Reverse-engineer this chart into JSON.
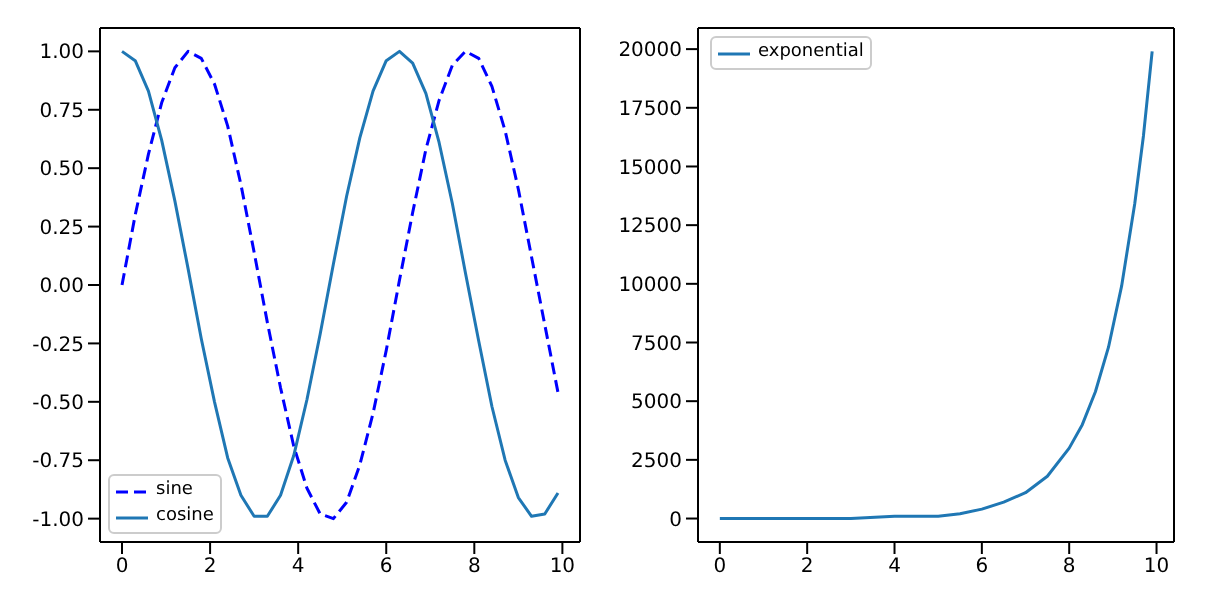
{
  "chart_data": [
    {
      "type": "line",
      "x": [
        0,
        0.3,
        0.6,
        0.9,
        1.2,
        1.5,
        1.8,
        2.1,
        2.4,
        2.7,
        3.0,
        3.3,
        3.6,
        3.9,
        4.2,
        4.5,
        4.8,
        5.1,
        5.4,
        5.7,
        6.0,
        6.3,
        6.6,
        6.9,
        7.2,
        7.5,
        7.8,
        8.1,
        8.4,
        8.7,
        9.0,
        9.3,
        9.6,
        9.9
      ],
      "series": [
        {
          "name": "sine",
          "color": "#0000ff",
          "line_style": "dashed",
          "values": [
            0,
            0.3,
            0.56,
            0.78,
            0.93,
            1.0,
            0.97,
            0.86,
            0.68,
            0.43,
            0.14,
            -0.16,
            -0.44,
            -0.69,
            -0.87,
            -0.98,
            -1.0,
            -0.93,
            -0.77,
            -0.55,
            -0.28,
            0.02,
            0.31,
            0.58,
            0.79,
            0.94,
            1.0,
            0.97,
            0.85,
            0.66,
            0.41,
            0.12,
            -0.17,
            -0.46
          ]
        },
        {
          "name": "cosine",
          "color": "#1f77b4",
          "line_style": "solid",
          "values": [
            1,
            0.96,
            0.83,
            0.62,
            0.36,
            0.07,
            -0.23,
            -0.5,
            -0.74,
            -0.9,
            -0.99,
            -0.99,
            -0.9,
            -0.73,
            -0.49,
            -0.21,
            0.09,
            0.38,
            0.63,
            0.83,
            0.96,
            1.0,
            0.95,
            0.82,
            0.61,
            0.35,
            0.05,
            -0.24,
            -0.52,
            -0.75,
            -0.91,
            -0.99,
            -0.98,
            -0.89
          ]
        }
      ],
      "xlim": [
        -0.5,
        10.4
      ],
      "xticks": [
        0,
        2,
        4,
        6,
        8,
        10
      ],
      "ylim": [
        -1.1,
        1.1
      ],
      "yticks": [
        {
          "value": -1,
          "label": "-1.00"
        },
        {
          "value": -0.75,
          "label": "-0.75"
        },
        {
          "value": -0.5,
          "label": "-0.50"
        },
        {
          "value": -0.25,
          "label": "-0.25"
        },
        {
          "value": 0,
          "label": "0.00"
        },
        {
          "value": 0.25,
          "label": "0.25"
        },
        {
          "value": 0.5,
          "label": "0.50"
        },
        {
          "value": 0.75,
          "label": "0.75"
        },
        {
          "value": 1,
          "label": "1.00"
        }
      ],
      "grid": false,
      "legend": "bottom left",
      "marker": "none"
    },
    {
      "type": "line",
      "x": [
        0,
        1,
        2,
        3,
        4,
        5,
        5.5,
        6,
        6.5,
        7,
        7.5,
        8,
        8.3,
        8.6,
        8.9,
        9.2,
        9.5,
        9.7,
        9.9
      ],
      "series": [
        {
          "name": "exponential",
          "color": "#1f77b4",
          "line_style": "solid",
          "values": [
            0,
            0,
            0,
            0,
            100,
            100,
            200,
            400,
            700,
            1100,
            1800,
            3000,
            4000,
            5400,
            7300,
            9900,
            13400,
            16300,
            19900
          ]
        }
      ],
      "xlim": [
        -0.5,
        10.4
      ],
      "xticks": [
        0,
        2,
        4,
        6,
        8,
        10
      ],
      "ylim": [
        -1000,
        20900
      ],
      "yticks": [
        0,
        2500,
        5000,
        7500,
        10000,
        12500,
        15000,
        17500,
        20000
      ],
      "grid": false,
      "legend": "top left",
      "marker": "none"
    }
  ]
}
